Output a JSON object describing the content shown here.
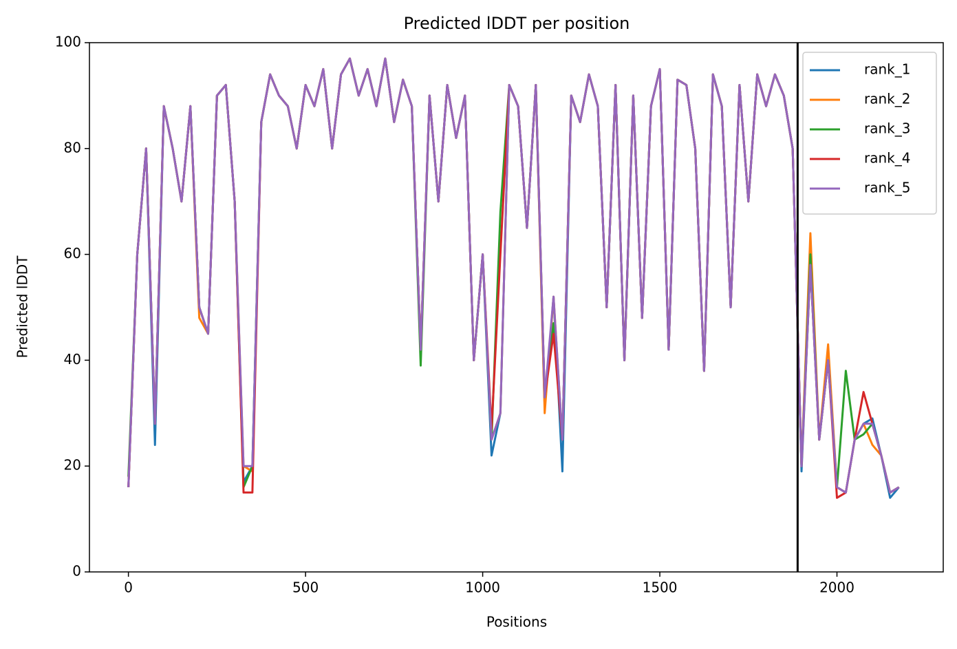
{
  "chart_data": {
    "type": "line",
    "title": "Predicted lDDT per position",
    "xlabel": "Positions",
    "ylabel": "Predicted lDDT",
    "xlim": [
      -110,
      2300
    ],
    "ylim": [
      0,
      100
    ],
    "xticks": [
      0,
      500,
      1000,
      1500,
      2000
    ],
    "yticks": [
      0,
      20,
      40,
      60,
      80,
      100
    ],
    "grid": false,
    "legend": "upper right",
    "vline": 1889,
    "x": [
      0,
      25,
      50,
      75,
      100,
      125,
      150,
      175,
      200,
      225,
      250,
      275,
      300,
      325,
      350,
      375,
      400,
      425,
      450,
      475,
      500,
      525,
      550,
      575,
      600,
      625,
      650,
      675,
      700,
      725,
      750,
      775,
      800,
      825,
      850,
      875,
      900,
      925,
      950,
      975,
      1000,
      1025,
      1050,
      1075,
      1100,
      1125,
      1150,
      1175,
      1200,
      1225,
      1250,
      1275,
      1300,
      1325,
      1350,
      1375,
      1400,
      1425,
      1450,
      1475,
      1500,
      1525,
      1550,
      1575,
      1600,
      1625,
      1650,
      1675,
      1700,
      1725,
      1750,
      1775,
      1800,
      1825,
      1850,
      1875,
      1900,
      1925,
      1950,
      1975,
      2000,
      2025,
      2050,
      2075,
      2100,
      2125,
      2150,
      2175
    ],
    "series": [
      {
        "name": "rank_1",
        "color": "#1f77b4",
        "values": [
          16,
          60,
          80,
          24,
          88,
          80,
          70,
          88,
          50,
          45,
          90,
          92,
          70,
          17,
          20,
          85,
          94,
          90,
          88,
          80,
          92,
          88,
          95,
          80,
          94,
          97,
          90,
          95,
          88,
          97,
          85,
          93,
          88,
          42,
          90,
          70,
          92,
          82,
          90,
          40,
          60,
          22,
          30,
          92,
          88,
          65,
          92,
          31,
          52,
          19,
          90,
          85,
          94,
          88,
          50,
          92,
          40,
          90,
          48,
          88,
          95,
          42,
          93,
          92,
          80,
          38,
          94,
          88,
          50,
          92,
          70,
          94,
          88,
          94,
          90,
          80,
          19,
          58,
          25,
          40,
          16,
          15,
          25,
          28,
          29,
          22,
          14,
          16
        ]
      },
      {
        "name": "rank_2",
        "color": "#ff7f0e",
        "values": [
          16,
          60,
          80,
          28,
          88,
          80,
          70,
          88,
          48,
          45,
          90,
          92,
          70,
          20,
          19,
          85,
          94,
          90,
          88,
          80,
          92,
          88,
          95,
          80,
          94,
          97,
          90,
          95,
          88,
          97,
          85,
          93,
          88,
          42,
          90,
          70,
          92,
          82,
          90,
          40,
          60,
          25,
          30,
          92,
          88,
          65,
          92,
          30,
          52,
          25,
          90,
          85,
          94,
          88,
          50,
          92,
          40,
          90,
          48,
          88,
          95,
          42,
          93,
          92,
          80,
          38,
          94,
          88,
          50,
          92,
          70,
          94,
          88,
          94,
          90,
          80,
          20,
          64,
          25,
          43,
          16,
          15,
          25,
          28,
          24,
          22,
          15,
          16
        ]
      },
      {
        "name": "rank_3",
        "color": "#2ca02c",
        "values": [
          18,
          60,
          80,
          28,
          88,
          80,
          70,
          88,
          50,
          45,
          90,
          92,
          70,
          16,
          20,
          85,
          94,
          90,
          88,
          80,
          92,
          88,
          95,
          80,
          94,
          97,
          90,
          95,
          88,
          97,
          85,
          93,
          88,
          39,
          90,
          70,
          92,
          82,
          90,
          40,
          60,
          25,
          68,
          92,
          88,
          65,
          92,
          33,
          47,
          25,
          90,
          85,
          94,
          88,
          50,
          92,
          40,
          90,
          48,
          88,
          95,
          42,
          93,
          92,
          80,
          38,
          94,
          88,
          50,
          92,
          70,
          94,
          88,
          94,
          90,
          80,
          20,
          60,
          25,
          40,
          16,
          38,
          25,
          26,
          28,
          22,
          15,
          16
        ]
      },
      {
        "name": "rank_4",
        "color": "#d62728",
        "values": [
          16,
          60,
          80,
          28,
          88,
          80,
          70,
          88,
          50,
          45,
          90,
          92,
          70,
          15,
          15,
          85,
          94,
          90,
          88,
          80,
          92,
          88,
          95,
          80,
          94,
          97,
          90,
          95,
          88,
          97,
          85,
          93,
          88,
          42,
          90,
          70,
          92,
          82,
          90,
          40,
          60,
          27,
          60,
          92,
          88,
          65,
          92,
          33,
          45,
          25,
          90,
          85,
          94,
          88,
          50,
          92,
          40,
          90,
          48,
          88,
          95,
          42,
          93,
          92,
          80,
          38,
          94,
          88,
          50,
          92,
          70,
          94,
          88,
          94,
          90,
          80,
          20,
          58,
          25,
          40,
          14,
          15,
          25,
          34,
          28,
          22,
          15,
          16
        ]
      },
      {
        "name": "rank_5",
        "color": "#9467bd",
        "values": [
          16,
          60,
          80,
          28,
          88,
          80,
          70,
          88,
          50,
          45,
          90,
          92,
          70,
          20,
          20,
          85,
          94,
          90,
          88,
          80,
          92,
          88,
          95,
          80,
          94,
          97,
          90,
          95,
          88,
          97,
          85,
          93,
          88,
          42,
          90,
          70,
          92,
          82,
          90,
          40,
          60,
          25,
          30,
          92,
          88,
          65,
          92,
          33,
          52,
          25,
          90,
          85,
          94,
          88,
          50,
          92,
          40,
          90,
          48,
          88,
          95,
          42,
          93,
          92,
          80,
          38,
          94,
          88,
          50,
          92,
          70,
          94,
          88,
          94,
          90,
          80,
          20,
          58,
          25,
          40,
          16,
          15,
          25,
          28,
          28,
          22,
          15,
          16
        ]
      }
    ]
  }
}
